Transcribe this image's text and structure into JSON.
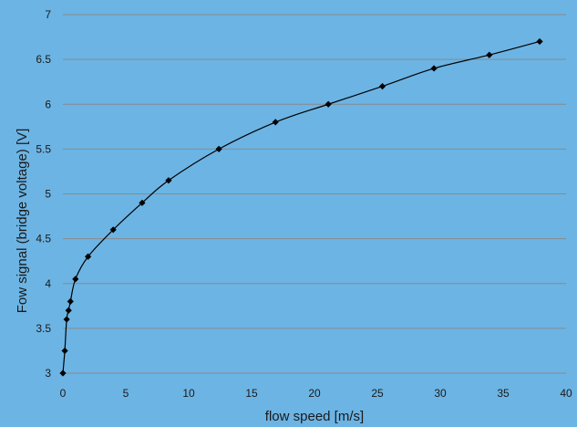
{
  "chart_data": {
    "type": "scatter",
    "title": "",
    "xlabel": "flow speed [m/s]",
    "ylabel": "Fow signal (bridge voltage) [V]",
    "xlim": [
      0,
      40
    ],
    "ylim": [
      3,
      7
    ],
    "x_ticks": [
      "0",
      "5",
      "10",
      "15",
      "20",
      "25",
      "30",
      "35",
      "40"
    ],
    "y_ticks": [
      "3",
      "3.5",
      "4",
      "4.5",
      "5",
      "5.5",
      "6",
      "6.5",
      "7"
    ],
    "grid": "horizontal",
    "series": [
      {
        "marker": "diamond",
        "line": "smooth",
        "color": "#000000",
        "points": [
          {
            "x": 0,
            "y": 3.0
          },
          {
            "x": 0.15,
            "y": 3.25
          },
          {
            "x": 0.3,
            "y": 3.6
          },
          {
            "x": 0.45,
            "y": 3.7
          },
          {
            "x": 0.6,
            "y": 3.8
          },
          {
            "x": 1.0,
            "y": 4.05
          },
          {
            "x": 2.0,
            "y": 4.3
          },
          {
            "x": 4.0,
            "y": 4.6
          },
          {
            "x": 6.3,
            "y": 4.9
          },
          {
            "x": 8.4,
            "y": 5.15
          },
          {
            "x": 12.4,
            "y": 5.5
          },
          {
            "x": 16.9,
            "y": 5.8
          },
          {
            "x": 21.1,
            "y": 6.0
          },
          {
            "x": 25.4,
            "y": 6.2
          },
          {
            "x": 29.5,
            "y": 6.4
          },
          {
            "x": 33.9,
            "y": 6.55
          },
          {
            "x": 37.9,
            "y": 6.7
          }
        ]
      }
    ]
  },
  "colors": {
    "background": "#6cb4e4",
    "grid": "#8a8a8a",
    "series": "#000000"
  }
}
